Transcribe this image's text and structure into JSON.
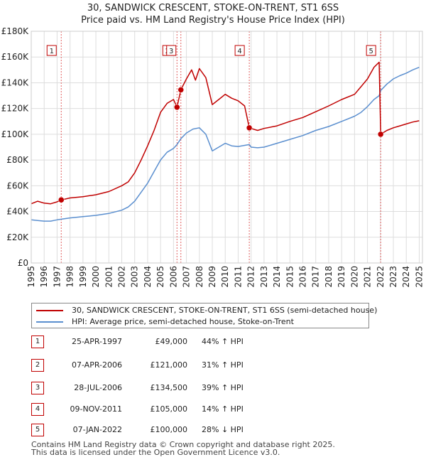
{
  "title_line1": "30, SANDWICK CRESCENT, STOKE-ON-TRENT, ST1 6SS",
  "title_line2": "Price paid vs. HM Land Registry's House Price Index (HPI)",
  "colors": {
    "property": "#c00000",
    "hpi": "#5b8fcf",
    "grid": "#dddddd",
    "marker_line": "#e06060"
  },
  "chart_data": {
    "type": "line",
    "x_range": [
      1995.0,
      2025.25
    ],
    "ylim": [
      0,
      180000
    ],
    "y_ticks": [
      0,
      20000,
      40000,
      60000,
      80000,
      100000,
      120000,
      140000,
      160000,
      180000
    ],
    "y_tick_labels": [
      "£0",
      "£20K",
      "£40K",
      "£60K",
      "£80K",
      "£100K",
      "£120K",
      "£140K",
      "£160K",
      "£180K"
    ],
    "x_ticks": [
      1995,
      1996,
      1997,
      1998,
      1999,
      2000,
      2001,
      2002,
      2003,
      2004,
      2005,
      2006,
      2007,
      2008,
      2009,
      2010,
      2011,
      2012,
      2013,
      2014,
      2015,
      2016,
      2017,
      2018,
      2019,
      2020,
      2021,
      2022,
      2023,
      2024,
      2025
    ],
    "grid": true,
    "legend_placement": "below",
    "series": [
      {
        "name": "30, SANDWICK CRESCENT, STOKE-ON-TRENT, ST1 6SS (semi-detached house)",
        "points": [
          [
            1995.0,
            46000
          ],
          [
            1995.5,
            48000
          ],
          [
            1996.0,
            46500
          ],
          [
            1996.5,
            46000
          ],
          [
            1997.0,
            47500
          ],
          [
            1997.32,
            49000
          ],
          [
            1998.0,
            50500
          ],
          [
            1999.0,
            51500
          ],
          [
            2000.0,
            53000
          ],
          [
            2001.0,
            55500
          ],
          [
            2002.0,
            60000
          ],
          [
            2002.5,
            63000
          ],
          [
            2003.0,
            70000
          ],
          [
            2003.5,
            80000
          ],
          [
            2004.0,
            91000
          ],
          [
            2004.5,
            103000
          ],
          [
            2005.0,
            117000
          ],
          [
            2005.5,
            124000
          ],
          [
            2006.0,
            127000
          ],
          [
            2006.27,
            121000
          ],
          [
            2006.57,
            134500
          ],
          [
            2007.0,
            143000
          ],
          [
            2007.4,
            150000
          ],
          [
            2007.7,
            142000
          ],
          [
            2008.0,
            151000
          ],
          [
            2008.5,
            144000
          ],
          [
            2009.0,
            123000
          ],
          [
            2009.5,
            127000
          ],
          [
            2010.0,
            131000
          ],
          [
            2010.5,
            128000
          ],
          [
            2011.0,
            126000
          ],
          [
            2011.5,
            122000
          ],
          [
            2011.86,
            105000
          ],
          [
            2012.0,
            104500
          ],
          [
            2012.5,
            103000
          ],
          [
            2013.0,
            104500
          ],
          [
            2014.0,
            106500
          ],
          [
            2015.0,
            110000
          ],
          [
            2016.0,
            113000
          ],
          [
            2017.0,
            117500
          ],
          [
            2018.0,
            122000
          ],
          [
            2019.0,
            127000
          ],
          [
            2020.0,
            131000
          ],
          [
            2020.5,
            137000
          ],
          [
            2021.0,
            143000
          ],
          [
            2021.5,
            152000
          ],
          [
            2021.9,
            156000
          ],
          [
            2022.02,
            100000
          ],
          [
            2022.5,
            103000
          ],
          [
            2023.0,
            105000
          ],
          [
            2023.5,
            106500
          ],
          [
            2024.0,
            108000
          ],
          [
            2024.5,
            109500
          ],
          [
            2025.0,
            110500
          ]
        ]
      },
      {
        "name": "HPI: Average price, semi-detached house, Stoke-on-Trent",
        "points": [
          [
            1995.0,
            33500
          ],
          [
            1995.5,
            33000
          ],
          [
            1996.0,
            32500
          ],
          [
            1996.5,
            32500
          ],
          [
            1997.0,
            33500
          ],
          [
            1997.32,
            34000
          ],
          [
            1998.0,
            35000
          ],
          [
            1999.0,
            36000
          ],
          [
            2000.0,
            37000
          ],
          [
            2001.0,
            38500
          ],
          [
            2002.0,
            41000
          ],
          [
            2002.5,
            43500
          ],
          [
            2003.0,
            48000
          ],
          [
            2003.5,
            55000
          ],
          [
            2004.0,
            62000
          ],
          [
            2004.5,
            71000
          ],
          [
            2005.0,
            80000
          ],
          [
            2005.5,
            86000
          ],
          [
            2006.0,
            89000
          ],
          [
            2006.27,
            92000
          ],
          [
            2006.57,
            96500
          ],
          [
            2007.0,
            101000
          ],
          [
            2007.5,
            104000
          ],
          [
            2008.0,
            105000
          ],
          [
            2008.5,
            100000
          ],
          [
            2009.0,
            87000
          ],
          [
            2009.5,
            90000
          ],
          [
            2010.0,
            93000
          ],
          [
            2010.5,
            91000
          ],
          [
            2011.0,
            90500
          ],
          [
            2011.86,
            92000
          ],
          [
            2012.0,
            90000
          ],
          [
            2012.5,
            89500
          ],
          [
            2013.0,
            90000
          ],
          [
            2014.0,
            93000
          ],
          [
            2015.0,
            96000
          ],
          [
            2016.0,
            99000
          ],
          [
            2017.0,
            103000
          ],
          [
            2018.0,
            106000
          ],
          [
            2019.0,
            110000
          ],
          [
            2020.0,
            114000
          ],
          [
            2020.5,
            117000
          ],
          [
            2021.0,
            121500
          ],
          [
            2021.5,
            127000
          ],
          [
            2021.9,
            130000
          ],
          [
            2022.02,
            134000
          ],
          [
            2022.5,
            139000
          ],
          [
            2023.0,
            143000
          ],
          [
            2023.5,
            145500
          ],
          [
            2024.0,
            147500
          ],
          [
            2024.5,
            150000
          ],
          [
            2025.0,
            152000
          ]
        ]
      }
    ],
    "sale_markers": [
      {
        "label": "1",
        "x": 1997.32,
        "y": 49000
      },
      {
        "label": "2",
        "x": 2006.27,
        "y": 121000
      },
      {
        "label": "3",
        "x": 2006.57,
        "y": 134500
      },
      {
        "label": "4",
        "x": 2011.86,
        "y": 105000
      },
      {
        "label": "5",
        "x": 2022.02,
        "y": 100000
      }
    ]
  },
  "legend": {
    "property_label": "30, SANDWICK CRESCENT, STOKE-ON-TRENT, ST1 6SS (semi-detached house)",
    "hpi_label": "HPI: Average price, semi-detached house, Stoke-on-Trent"
  },
  "sales": [
    {
      "num": "1",
      "date": "25-APR-1997",
      "price": "£49,000",
      "hpi": "44% ↑ HPI"
    },
    {
      "num": "2",
      "date": "07-APR-2006",
      "price": "£121,000",
      "hpi": "31% ↑ HPI"
    },
    {
      "num": "3",
      "date": "28-JUL-2006",
      "price": "£134,500",
      "hpi": "39% ↑ HPI"
    },
    {
      "num": "4",
      "date": "09-NOV-2011",
      "price": "£105,000",
      "hpi": "14% ↑ HPI"
    },
    {
      "num": "5",
      "date": "07-JAN-2022",
      "price": "£100,000",
      "hpi": "28% ↓ HPI"
    }
  ],
  "footer_line1": "Contains HM Land Registry data © Crown copyright and database right 2025.",
  "footer_line2": "This data is licensed under the Open Government Licence v3.0."
}
